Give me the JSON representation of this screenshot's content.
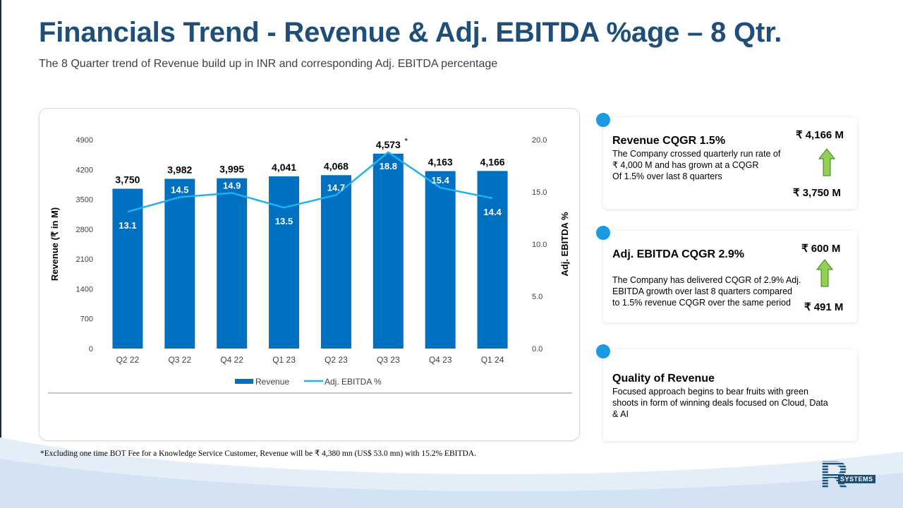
{
  "header": {
    "title": "Financials Trend - Revenue & Adj. EBITDA %age – 8 Qtr.",
    "subtitle": "The 8 Quarter trend of Revenue build up in INR and corresponding Adj. EBITDA percentage"
  },
  "chart_data": {
    "type": "bar",
    "categories": [
      "Q2 22",
      "Q3 22",
      "Q4 22",
      "Q1 23",
      "Q2 23",
      "Q3 23",
      "Q4 23",
      "Q1 24"
    ],
    "series": [
      {
        "name": "Revenue",
        "type": "bar",
        "axis": "left",
        "values": [
          3750,
          3982,
          3995,
          4041,
          4068,
          4573,
          4163,
          4166
        ],
        "labels": [
          "3,750",
          "3,982",
          "3,995",
          "4,041",
          "4,068",
          "4,573",
          "4,163",
          "4,166"
        ],
        "color": "#0070c0"
      },
      {
        "name": "Adj. EBITDA %",
        "type": "line",
        "axis": "right",
        "values": [
          13.1,
          14.5,
          14.9,
          13.5,
          14.7,
          18.8,
          15.4,
          14.4
        ],
        "labels": [
          "13.1",
          "14.5",
          "14.9",
          "13.5",
          "14.7",
          "18.8",
          "15.4",
          "14.4"
        ],
        "color": "#1fb2f0"
      }
    ],
    "annotation": {
      "category": "Q3 23",
      "text": "*"
    },
    "ylabel": "Revenue (₹ in M)",
    "y2label": "Adj. EBITDA %",
    "ylim": [
      0,
      4900
    ],
    "y2lim": [
      0,
      20
    ],
    "yticks": [
      0,
      700,
      1400,
      2100,
      2800,
      3500,
      4200,
      4900
    ],
    "y2ticks": [
      "0.0",
      "5.0",
      "10.0",
      "15.0",
      "20.0"
    ],
    "legend_position": "bottom"
  },
  "footnote": "*Excluding one time BOT Fee for a Knowledge Service Customer, Revenue will be ₹ 4,380 mn (US$ 53.0 mn) with 15.2% EBITDA.",
  "kpis": [
    {
      "title": "Revenue CQGR 1.5%",
      "lines": [
        "The Company crossed quarterly run rate of",
        " ₹ 4,000 M and has grown at a CQGR",
        "Of 1.5% over last 8 quarters"
      ],
      "top_value": "₹ 4,166 M",
      "bottom_value": "₹ 3,750 M"
    },
    {
      "title": "Adj. EBITDA CQGR 2.9%",
      "lines": [
        "The Company has delivered CQGR of 2.9% Adj.",
        "EBITDA growth over last 8 quarters compared",
        "to 1.5% revenue CQGR over the same period"
      ],
      "top_value": "₹ 600 M",
      "bottom_value": "₹ 491 M"
    },
    {
      "title": "Quality of Revenue",
      "lines": [
        "Focused approach begins to bear fruits with green",
        "shoots in form of winning deals focused on Cloud, Data",
        "& AI"
      ]
    }
  ],
  "logo": {
    "letter": "R",
    "text": "SYSTEMS"
  },
  "colors": {
    "title": "#1f4e79",
    "bar": "#0070c0",
    "line": "#1fb2f0",
    "accent": "#1a9be8",
    "arrow": "#92d050"
  }
}
